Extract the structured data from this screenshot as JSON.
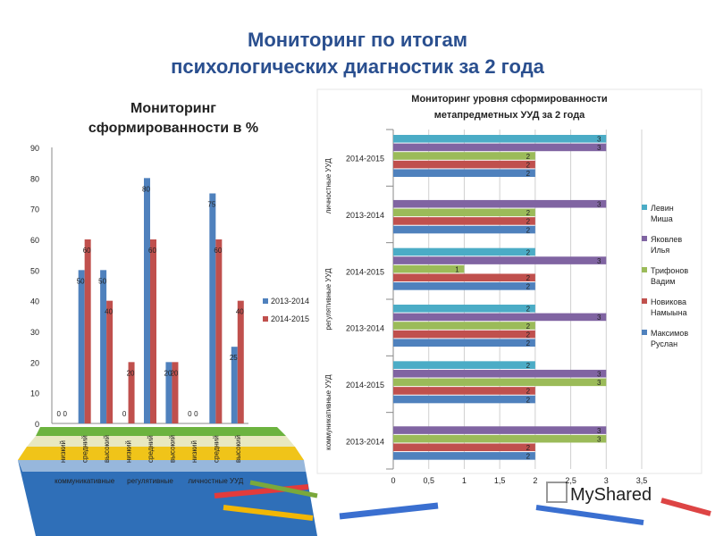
{
  "slide": {
    "title_line1": "Мониторинг по итогам",
    "title_line2": "психологических диагностик за 2 года"
  },
  "chart_data": [
    {
      "type": "bar",
      "title": "Мониторинг сформированности в %",
      "ylim": [
        0,
        90
      ],
      "yticks": [
        0,
        10,
        20,
        30,
        40,
        50,
        60,
        70,
        80,
        90
      ],
      "categories": [
        "низкий",
        "средний",
        "высокий",
        "низкий",
        "средний",
        "высокий",
        "низкий",
        "средний",
        "высокий"
      ],
      "groups": [
        "коммуникативные",
        "регулятивные",
        "личностные УУД"
      ],
      "series": [
        {
          "name": "2013-2014",
          "color": "#4f81bd",
          "values": [
            0,
            50,
            50,
            0,
            80,
            20,
            0,
            75,
            25
          ]
        },
        {
          "name": "2014-2015",
          "color": "#c0504d",
          "values": [
            0,
            60,
            40,
            20,
            60,
            20,
            0,
            60,
            40
          ]
        }
      ],
      "legend": "right",
      "grid": false
    },
    {
      "type": "bar",
      "orientation": "horizontal",
      "title": "Мониторинг уровня сформированности метапредметных УУД за 2 года",
      "xlim": [
        0,
        3.5
      ],
      "xticks": [
        "0",
        "0,5",
        "1",
        "1,5",
        "2",
        "2,5",
        "3",
        "3,5"
      ],
      "groups": [
        "личностные УУД",
        "регулятивные УУД",
        "коммуникативные УУД"
      ],
      "categories": [
        "2014-2015",
        "2013-2014",
        "2014-2015",
        "2013-2014",
        "2014-2015",
        "2013-2014"
      ],
      "series": [
        {
          "name": "Левин Миша",
          "color": "#4bacc6",
          "values": [
            3,
            0,
            2,
            2,
            2,
            0
          ]
        },
        {
          "name": "Яковлев Илья",
          "color": "#8064a2",
          "values": [
            3,
            3,
            3,
            3,
            3,
            3
          ]
        },
        {
          "name": "Трифонов Вадим",
          "color": "#9bbb59",
          "values": [
            2,
            2,
            1,
            2,
            3,
            3
          ]
        },
        {
          "name": "Новикова Намыына",
          "color": "#c0504d",
          "values": [
            2,
            2,
            2,
            2,
            2,
            2
          ]
        },
        {
          "name": "Максимов Руслан",
          "color": "#4f81bd",
          "values": [
            2,
            2,
            2,
            2,
            2,
            2
          ]
        }
      ],
      "legend": "right",
      "grid": true
    }
  ],
  "watermark": "MyShared"
}
